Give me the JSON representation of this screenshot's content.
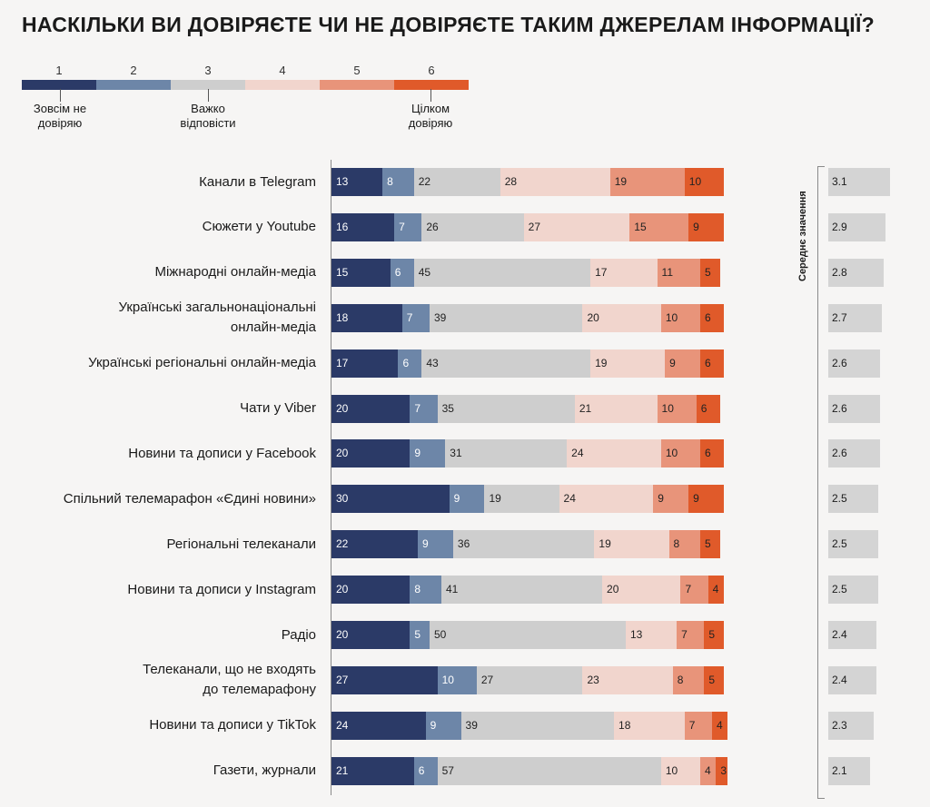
{
  "title": "НАСКІЛЬКИ ВИ ДОВІРЯЄТЕ ЧИ НЕ ДОВІРЯЄТЕ ТАКИМ ДЖЕРЕЛАМ ІНФОРМАЦІЇ?",
  "scale": {
    "numbers": [
      "1",
      "2",
      "3",
      "4",
      "5",
      "6"
    ],
    "colors": [
      "#2b3a67",
      "#6d86a8",
      "#cecece",
      "#f1d5cd",
      "#e8947a",
      "#e05a2a"
    ],
    "label_left": "Зовсім не довіряю",
    "label_mid": "Важко відповісти",
    "label_right": "Цілком довіряю"
  },
  "mean_title": "Середнє значення",
  "chart_data": {
    "type": "bar",
    "orientation": "horizontal",
    "stacked": true,
    "title": "НАСКІЛЬКИ ВИ ДОВІРЯЄТЕ ЧИ НЕ ДОВІРЯЄТЕ ТАКИМ ДЖЕРЕЛАМ ІНФОРМАЦІЇ?",
    "categories": [
      "Канали в Telegram",
      "Сюжети у Youtube",
      "Міжнародні онлайн-медіа",
      "Українські загальнонаціональні онлайн-медіа",
      "Українські регіональні онлайн-медіа",
      "Чати у Viber",
      "Новини та дописи у Facebook",
      "Спільний телемарафон «Єдині новини»",
      "Регіональні телеканали",
      "Новини та дописи у Instagram",
      "Радіо",
      "Телеканали, що не входять до телемарафону",
      "Новини та дописи у TikTok",
      "Газети, журнали"
    ],
    "category_lines": [
      [
        "Канали в Telegram"
      ],
      [
        "Сюжети у Youtube"
      ],
      [
        "Міжнародні онлайн-медіа"
      ],
      [
        "Українські загальнонаціональні",
        "онлайн-медіа"
      ],
      [
        "Українські регіональні онлайн-медіа"
      ],
      [
        "Чати у Viber"
      ],
      [
        "Новини та дописи у Facebook"
      ],
      [
        "Спільний телемарафон «Єдині новини»"
      ],
      [
        "Регіональні телеканали"
      ],
      [
        "Новини та дописи у Instagram"
      ],
      [
        "Радіо"
      ],
      [
        "Телеканали, що не входять",
        "до телемарафону"
      ],
      [
        "Новини та дописи у TikTok"
      ],
      [
        "Газети, журнали"
      ]
    ],
    "series": [
      {
        "name": "1",
        "color": "#2b3a67",
        "values": [
          13,
          16,
          15,
          18,
          17,
          20,
          20,
          30,
          22,
          20,
          20,
          27,
          24,
          21
        ]
      },
      {
        "name": "2",
        "color": "#6d86a8",
        "values": [
          8,
          7,
          6,
          7,
          6,
          7,
          9,
          9,
          9,
          8,
          5,
          10,
          9,
          6
        ]
      },
      {
        "name": "3",
        "color": "#cecece",
        "values": [
          22,
          26,
          45,
          39,
          43,
          35,
          31,
          19,
          36,
          41,
          50,
          27,
          39,
          57
        ]
      },
      {
        "name": "4",
        "color": "#f1d5cd",
        "values": [
          28,
          27,
          17,
          20,
          19,
          21,
          24,
          24,
          19,
          20,
          13,
          23,
          18,
          10
        ]
      },
      {
        "name": "5",
        "color": "#e8947a",
        "values": [
          19,
          15,
          11,
          10,
          9,
          10,
          10,
          9,
          8,
          7,
          7,
          8,
          7,
          4
        ]
      },
      {
        "name": "6",
        "color": "#e05a2a",
        "values": [
          10,
          9,
          5,
          6,
          6,
          6,
          6,
          9,
          5,
          4,
          5,
          5,
          4,
          3
        ]
      }
    ],
    "means": [
      "3.1",
      "2.9",
      "2.8",
      "2.7",
      "2.6",
      "2.6",
      "2.6",
      "2.5",
      "2.5",
      "2.5",
      "2.4",
      "2.4",
      "2.3",
      "2.1"
    ],
    "mean_values": [
      3.1,
      2.9,
      2.8,
      2.7,
      2.6,
      2.6,
      2.6,
      2.5,
      2.5,
      2.5,
      2.4,
      2.4,
      2.3,
      2.1
    ],
    "xlim": [
      0,
      100
    ]
  }
}
